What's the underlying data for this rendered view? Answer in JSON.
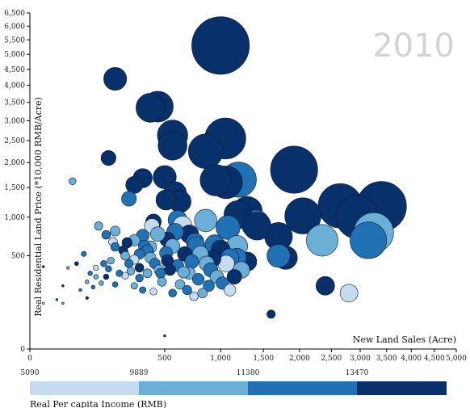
{
  "chart_data": {
    "type": "scatter",
    "title": "",
    "year": "2010",
    "xlabel": "New Land Sales (Acre)",
    "ylabel": "Real Residential Land Price (*10,000 RMB/Acre)",
    "x_scale": "sqrt",
    "y_scale": "sqrt",
    "xlim": [
      0,
      5000
    ],
    "ylim": [
      0,
      6500
    ],
    "x_ticks": [
      0,
      500,
      1000,
      1500,
      2000,
      2500,
      3000,
      3500,
      4000,
      4500,
      5000
    ],
    "x_tick_labels": [
      "0",
      "500",
      "1,000",
      "1,500",
      "2,000",
      "2,500",
      "3,000",
      "3,500",
      "4,000",
      "4,500",
      "5,000"
    ],
    "y_ticks": [
      0,
      500,
      1000,
      1500,
      2000,
      2500,
      3000,
      3500,
      4000,
      4500,
      5000,
      5500,
      6000,
      6500
    ],
    "y_tick_labels": [
      "0",
      "500",
      "1,000",
      "1,500",
      "2,000",
      "2,500",
      "3,000",
      "3,500",
      "4,000",
      "4,500",
      "5,000",
      "5,500",
      "6,000",
      "6,500"
    ],
    "legend": {
      "title": "Real Per capita Income (RMB)",
      "thresholds": [
        "5090",
        "9889",
        "11380",
        "13470"
      ],
      "colors": [
        "#c6dbef",
        "#6baed6",
        "#2171b5",
        "#08306b"
      ]
    },
    "size_encoding": "bubble area proportional to x * y",
    "points": [
      [
        1000,
        5300,
        3
      ],
      [
        1050,
        2550,
        3
      ],
      [
        3150,
        680,
        2
      ],
      [
        2950,
        1000,
        3
      ],
      [
        3250,
        780,
        1
      ],
      [
        2650,
        1180,
        3
      ],
      [
        3400,
        1170,
        3
      ],
      [
        2350,
        680,
        1
      ],
      [
        1920,
        1850,
        3
      ],
      [
        1700,
        730,
        3
      ],
      [
        1700,
        500,
        2
      ],
      [
        1400,
        900,
        2
      ],
      [
        1420,
        870,
        3
      ],
      [
        2050,
        1020,
        3
      ],
      [
        1800,
        480,
        3
      ],
      [
        2400,
        230,
        3
      ],
      [
        2800,
        180,
        0
      ],
      [
        560,
        2630,
        3
      ],
      [
        560,
        2380,
        3
      ],
      [
        400,
        3350,
        3
      ],
      [
        450,
        3380,
        3
      ],
      [
        500,
        1700,
        3
      ],
      [
        620,
        1250,
        3
      ],
      [
        580,
        1400,
        3
      ],
      [
        950,
        1640,
        3
      ],
      [
        850,
        2250,
        3
      ],
      [
        1300,
        1090,
        3
      ],
      [
        1190,
        1040,
        3
      ],
      [
        1200,
        1650,
        2
      ],
      [
        1060,
        1600,
        3
      ],
      [
        940,
        630,
        2
      ],
      [
        850,
        950,
        1
      ],
      [
        750,
        660,
        2
      ],
      [
        350,
        1680,
        3
      ],
      [
        270,
        1300,
        2
      ],
      [
        510,
        1280,
        3
      ],
      [
        130,
        870,
        1
      ],
      [
        200,
        4200,
        3
      ],
      [
        170,
        2100,
        3
      ],
      [
        160,
        750,
        2
      ],
      [
        300,
        1550,
        3
      ],
      [
        420,
        930,
        3
      ],
      [
        410,
        870,
        0
      ],
      [
        600,
        960,
        2
      ],
      [
        1180,
        610,
        1
      ],
      [
        1100,
        480,
        2
      ],
      [
        1060,
        420,
        0
      ],
      [
        650,
        340,
        1
      ],
      [
        560,
        610,
        1
      ],
      [
        780,
        280,
        2
      ],
      [
        900,
        360,
        2
      ],
      [
        1000,
        570,
        3
      ],
      [
        520,
        450,
        3
      ],
      [
        460,
        360,
        1
      ],
      [
        330,
        290,
        2
      ],
      [
        380,
        560,
        2
      ],
      [
        250,
        500,
        1
      ],
      [
        360,
        610,
        2
      ],
      [
        470,
        330,
        2
      ],
      [
        270,
        420,
        2
      ],
      [
        300,
        680,
        1
      ],
      [
        200,
        600,
        2
      ],
      [
        180,
        450,
        1
      ],
      [
        150,
        420,
        2
      ],
      [
        120,
        380,
        0
      ],
      [
        100,
        330,
        2
      ],
      [
        90,
        260,
        1
      ],
      [
        70,
        200,
        2
      ],
      [
        60,
        420,
        3
      ],
      [
        80,
        520,
        2
      ],
      [
        140,
        250,
        1
      ],
      [
        200,
        240,
        2
      ],
      [
        250,
        310,
        0
      ],
      [
        300,
        230,
        1
      ],
      [
        350,
        200,
        2
      ],
      [
        420,
        190,
        0
      ],
      [
        480,
        260,
        1
      ],
      [
        560,
        180,
        2
      ],
      [
        620,
        240,
        1
      ],
      [
        680,
        200,
        2
      ],
      [
        740,
        160,
        0
      ],
      [
        820,
        180,
        1
      ],
      [
        880,
        230,
        2
      ],
      [
        960,
        300,
        1
      ],
      [
        1020,
        250,
        2
      ],
      [
        1100,
        200,
        0
      ],
      [
        1150,
        300,
        3
      ],
      [
        1230,
        360,
        1
      ],
      [
        660,
        520,
        3
      ],
      [
        720,
        440,
        2
      ],
      [
        600,
        400,
        2
      ],
      [
        400,
        480,
        1
      ],
      [
        430,
        420,
        2
      ],
      [
        330,
        380,
        3
      ],
      [
        280,
        350,
        1
      ],
      [
        220,
        330,
        2
      ],
      [
        170,
        370,
        2
      ],
      [
        120,
        300,
        1
      ],
      [
        200,
        800,
        1
      ],
      [
        240,
        560,
        3
      ],
      [
        300,
        460,
        0
      ],
      [
        380,
        330,
        1
      ],
      [
        510,
        530,
        2
      ],
      [
        540,
        360,
        3
      ],
      [
        700,
        330,
        1
      ],
      [
        760,
        620,
        2
      ],
      [
        800,
        520,
        1
      ],
      [
        860,
        420,
        1
      ],
      [
        920,
        470,
        3
      ],
      [
        1180,
        480,
        2
      ],
      [
        1300,
        440,
        3
      ],
      [
        160,
        300,
        3
      ],
      [
        110,
        220,
        2
      ],
      [
        40,
        380,
        1
      ],
      [
        30,
        230,
        3
      ],
      [
        20,
        140,
        2
      ],
      [
        5,
        390,
        3
      ],
      [
        350,
        740,
        2
      ],
      [
        450,
        760,
        1
      ],
      [
        520,
        690,
        3
      ],
      [
        580,
        790,
        2
      ],
      [
        640,
        880,
        0
      ],
      [
        700,
        760,
        3
      ],
      [
        1080,
        850,
        2
      ],
      [
        260,
        650,
        3
      ],
      [
        330,
        520,
        2
      ],
      [
        400,
        600,
        1
      ],
      [
        190,
        660,
        0
      ],
      [
        500,
        10,
        3
      ],
      [
        5,
        120,
        0
      ],
      [
        50,
        1620,
        1
      ],
      [
        1600,
        70,
        3
      ],
      [
        30,
        120,
        1
      ],
      [
        90,
        150,
        3
      ]
    ]
  }
}
